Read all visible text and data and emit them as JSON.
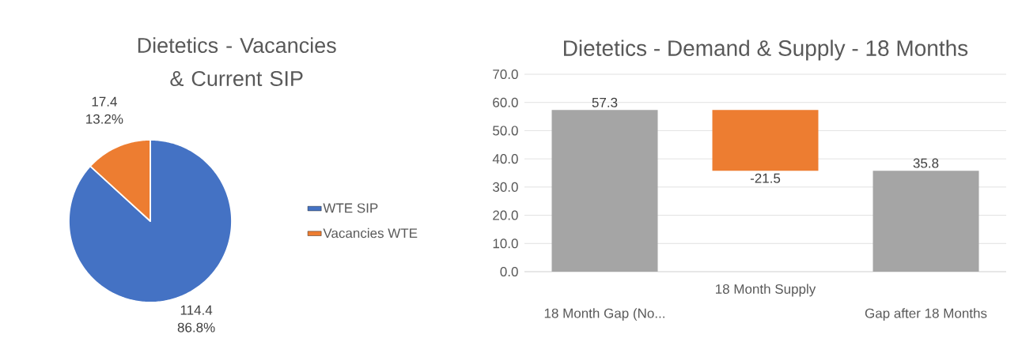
{
  "chart_data": [
    {
      "type": "pie",
      "title": "Dietetics - Vacancies & Current SIP",
      "categories": [
        "WTE SIP",
        "Vacancies WTE"
      ],
      "values": [
        86.8,
        13.2
      ],
      "colors": [
        "#4472c4",
        "#ed7d31"
      ],
      "value_labels": [
        "114.4 86.8%",
        "17.4 13.2%"
      ],
      "legend": "right"
    },
    {
      "type": "bar",
      "title": "Dietetics - Demand & Supply - 18 Months",
      "categories": [
        "18 Month Gap (No...",
        "18 Month Supply",
        "Gap after 18 Months"
      ],
      "values": [
        57.3,
        -21.5,
        35.8
      ],
      "base": [
        0,
        57.3,
        0
      ],
      "colors": [
        "#a5a5a5",
        "#ed7d31",
        "#a5a5a5"
      ],
      "data_labels": true,
      "ylim": [
        0,
        70
      ],
      "yticks": [
        {
          "value": 0,
          "label": "0.0"
        },
        {
          "value": 10,
          "label": "10.0"
        },
        {
          "value": 20,
          "label": "20.0"
        },
        {
          "value": 30,
          "label": "30.0"
        },
        {
          "value": 40,
          "label": "40.0"
        },
        {
          "value": 50,
          "label": "50.0"
        },
        {
          "value": 60,
          "label": "60.0"
        },
        {
          "value": 70,
          "label": "70.0"
        }
      ],
      "grid": "y"
    }
  ]
}
